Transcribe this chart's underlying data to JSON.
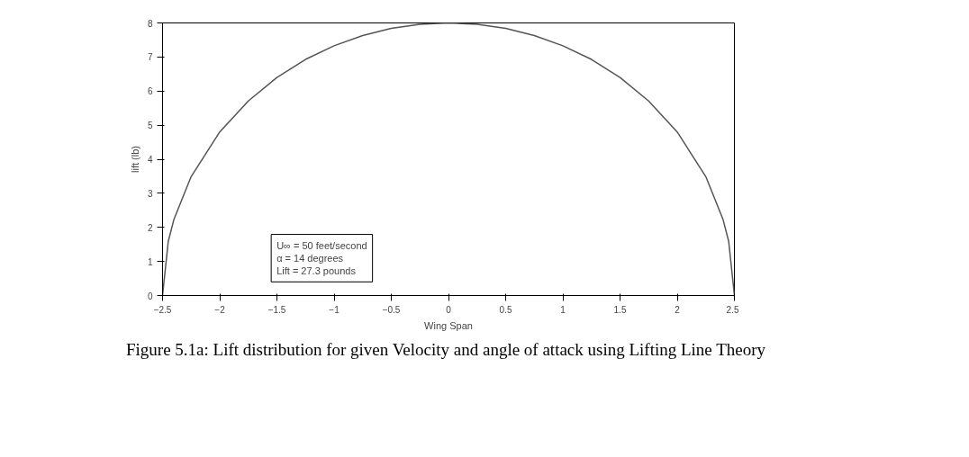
{
  "chart_data": {
    "type": "line",
    "xlabel": "Wing Span",
    "ylabel": "lift (lb)",
    "x": [
      -2.5,
      -2.45,
      -2.4,
      -2.25,
      -2.0,
      -1.75,
      -1.5,
      -1.25,
      -1.0,
      -0.75,
      -0.5,
      -0.25,
      0,
      0.25,
      0.5,
      0.75,
      1.0,
      1.25,
      1.5,
      1.75,
      2.0,
      2.25,
      2.4,
      2.45,
      2.5
    ],
    "series": [
      {
        "color": "#555555",
        "values": [
          0,
          1.59,
          2.24,
          3.49,
          4.8,
          5.71,
          6.4,
          6.93,
          7.33,
          7.63,
          7.84,
          7.96,
          8,
          7.96,
          7.84,
          7.63,
          7.33,
          6.93,
          6.4,
          5.71,
          4.8,
          3.49,
          2.24,
          1.59,
          0
        ]
      }
    ],
    "xlim": [
      -2.5,
      2.5
    ],
    "ylim": [
      0,
      8
    ],
    "xticks": [
      -2.5,
      -2,
      -1.5,
      -1,
      -0.5,
      0,
      0.5,
      1,
      1.5,
      2,
      2.5
    ],
    "yticks": [
      0,
      1,
      2,
      3,
      4,
      5,
      6,
      7,
      8
    ],
    "grid": false,
    "marker": "none",
    "line_style": "solid",
    "annotations": [
      "U∞ = 50 feet/second",
      "α = 14 degrees",
      "Lift = 27.3 pounds",
      "Figure 5.1a: Lift distribution for given Velocity and angle of attack using Lifting Line Theory"
    ]
  }
}
